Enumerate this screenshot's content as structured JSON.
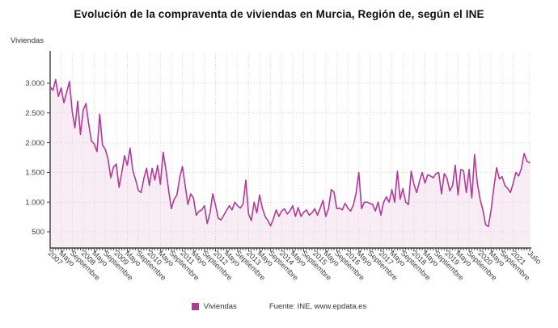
{
  "title": "Evolución de la compraventa de viviendas en Murcia, Región de, según el INE",
  "y_axis_title": "Viviendas",
  "legend": {
    "label": "Viviendas"
  },
  "source": "Fuente: INE, www.epdata.es",
  "colors": {
    "line": "#b23a98",
    "area_fill": "#f8ecf5",
    "grid": "#d8d0d6",
    "axis": "#3c3c3c",
    "tick_label": "#3f3f3f"
  },
  "chart_data": {
    "type": "area",
    "title": "Evolución de la compraventa de viviendas en Murcia, Región de, según el INE",
    "xlabel": "",
    "ylabel": "Viviendas",
    "x_start": "Enero 2007",
    "x_end": "Julio 2021",
    "x_frequency": "monthly",
    "ylim": [
      0,
      3500
    ],
    "grid": "dotted",
    "legend_position": "bottom",
    "y_tick_values": [
      500,
      1000,
      1500,
      2000,
      2500,
      3000
    ],
    "y_tick_labels": [
      "500",
      "1.000",
      "1.500",
      "2.000",
      "2.500",
      "3.000"
    ],
    "x_tick_positions": [
      0,
      4,
      8,
      12,
      16,
      20,
      24,
      28,
      32,
      36,
      40,
      44,
      48,
      52,
      56,
      60,
      64,
      68,
      72,
      76,
      80,
      84,
      88,
      92,
      96,
      100,
      104,
      108,
      112,
      116,
      120,
      124,
      128,
      132,
      136,
      140,
      144,
      148,
      152,
      156,
      160,
      164,
      168,
      174
    ],
    "x_tick_labels": [
      "2007",
      "Mayo",
      "Septiembre",
      "2008",
      "Mayo",
      "Septiembre",
      "2009",
      "Mayo",
      "Septiembre",
      "2010",
      "Mayo",
      "Septiembre",
      "2011",
      "Mayo",
      "Septiembre",
      "2012",
      "Mayo",
      "Septiembre",
      "2013",
      "Mayo",
      "Septiembre",
      "2014",
      "Mayo",
      "Septiembre",
      "2015",
      "Mayo",
      "Septiembre",
      "2016",
      "Mayo",
      "Septiembre",
      "2017",
      "Mayo",
      "Septiembre",
      "2018",
      "Mayo",
      "Septiembre",
      "2019",
      "Mayo",
      "Septiembre",
      "2020",
      "Mayo",
      "Septiembre",
      "2021",
      "Julio"
    ],
    "series": [
      {
        "name": "Viviendas",
        "color": "#b23a98",
        "values": [
          2940,
          2880,
          3060,
          2780,
          2920,
          2670,
          2850,
          3030,
          2530,
          2250,
          2700,
          2140,
          2550,
          2660,
          2310,
          2030,
          1980,
          1850,
          2480,
          1960,
          1890,
          1730,
          1410,
          1590,
          1640,
          1250,
          1500,
          1780,
          1620,
          1910,
          1530,
          1380,
          1200,
          1160,
          1400,
          1570,
          1280,
          1570,
          1370,
          1620,
          1300,
          1840,
          1550,
          1200,
          890,
          1050,
          1120,
          1410,
          1600,
          1280,
          960,
          1140,
          1070,
          780,
          845,
          870,
          940,
          640,
          820,
          1140,
          950,
          730,
          700,
          780,
          860,
          940,
          870,
          1000,
          940,
          900,
          970,
          1370,
          800,
          690,
          1000,
          820,
          1120,
          900,
          760,
          690,
          600,
          720,
          870,
          760,
          850,
          890,
          800,
          850,
          940,
          760,
          910,
          760,
          830,
          870,
          780,
          820,
          890,
          780,
          900,
          1030,
          760,
          890,
          1210,
          1170,
          890,
          900,
          870,
          980,
          900,
          850,
          950,
          1150,
          1500,
          890,
          1000,
          1000,
          980,
          960,
          850,
          1000,
          780,
          1000,
          1090,
          1000,
          1210,
          1000,
          1520,
          1050,
          1230,
          1000,
          960,
          1520,
          1300,
          1160,
          1350,
          1500,
          1320,
          1460,
          1440,
          1410,
          1480,
          1500,
          1140,
          1480,
          1400,
          1190,
          1280,
          1620,
          1120,
          1550,
          1530,
          1160,
          1550,
          1070,
          1800,
          1320,
          1050,
          870,
          620,
          590,
          870,
          1250,
          1580,
          1390,
          1430,
          1280,
          1230,
          1160,
          1320,
          1500,
          1440,
          1570,
          1820,
          1690,
          1660
        ]
      }
    ]
  }
}
